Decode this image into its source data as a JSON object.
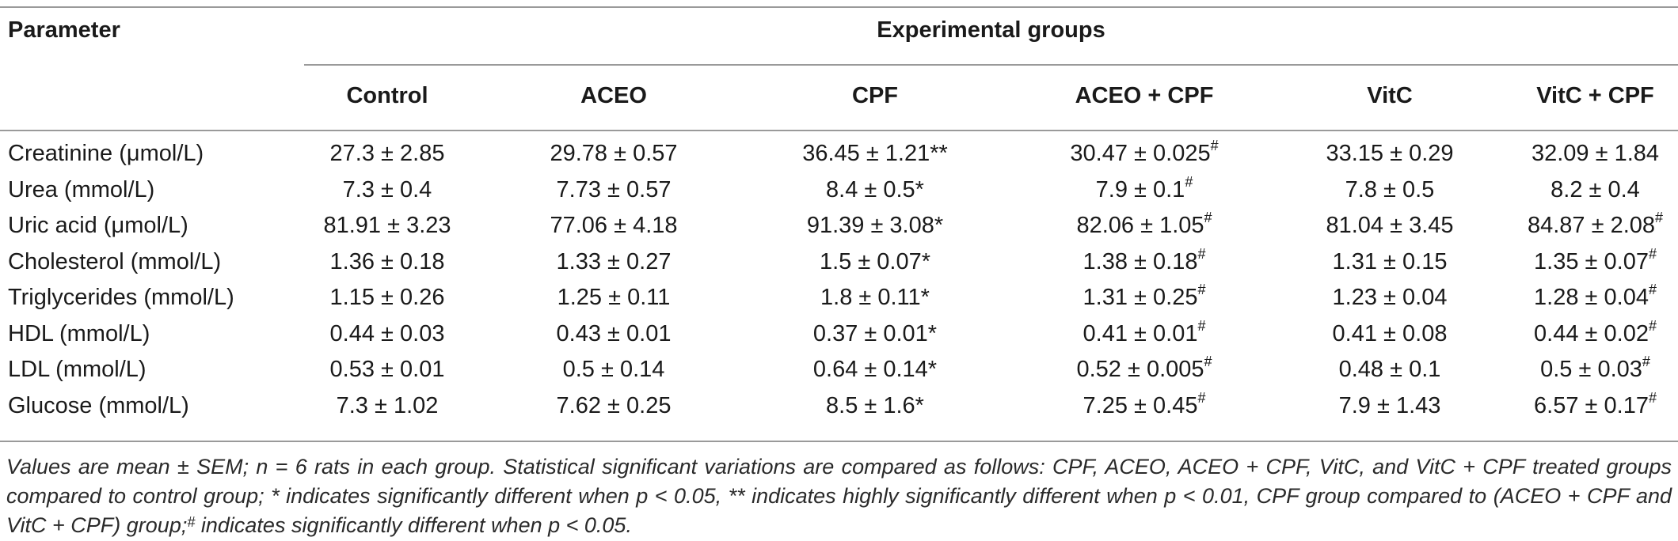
{
  "table": {
    "header_param": "Parameter",
    "header_groups": "Experimental groups",
    "columns": [
      "Control",
      "ACEO",
      "CPF",
      "ACEO + CPF",
      "VitC",
      "VitC + CPF"
    ],
    "rows": [
      {
        "label": "Creatinine (μmol/L)",
        "cells": [
          {
            "v": "27.3 ± 2.85",
            "s": ""
          },
          {
            "v": "29.78 ± 0.57",
            "s": ""
          },
          {
            "v": "36.45 ± 1.21**",
            "s": ""
          },
          {
            "v": "30.47 ± 0.025",
            "s": "#"
          },
          {
            "v": "33.15 ± 0.29",
            "s": ""
          },
          {
            "v": "32.09 ± 1.84",
            "s": ""
          }
        ]
      },
      {
        "label": "Urea (mmol/L)",
        "cells": [
          {
            "v": "7.3 ± 0.4",
            "s": ""
          },
          {
            "v": "7.73 ± 0.57",
            "s": ""
          },
          {
            "v": "8.4 ± 0.5*",
            "s": ""
          },
          {
            "v": "7.9 ± 0.1",
            "s": "#"
          },
          {
            "v": "7.8 ± 0.5",
            "s": ""
          },
          {
            "v": "8.2 ± 0.4",
            "s": ""
          }
        ]
      },
      {
        "label": "Uric acid (μmol/L)",
        "cells": [
          {
            "v": "81.91 ± 3.23",
            "s": ""
          },
          {
            "v": "77.06 ± 4.18",
            "s": ""
          },
          {
            "v": "91.39 ± 3.08*",
            "s": ""
          },
          {
            "v": "82.06 ± 1.05",
            "s": "#"
          },
          {
            "v": "81.04 ± 3.45",
            "s": ""
          },
          {
            "v": "84.87 ± 2.08",
            "s": "#"
          }
        ]
      },
      {
        "label": "Cholesterol (mmol/L)",
        "cells": [
          {
            "v": "1.36 ± 0.18",
            "s": ""
          },
          {
            "v": "1.33 ± 0.27",
            "s": ""
          },
          {
            "v": "1.5 ± 0.07*",
            "s": ""
          },
          {
            "v": "1.38 ± 0.18",
            "s": "#"
          },
          {
            "v": "1.31 ± 0.15",
            "s": ""
          },
          {
            "v": "1.35 ± 0.07",
            "s": "#"
          }
        ]
      },
      {
        "label": "Triglycerides (mmol/L)",
        "cells": [
          {
            "v": "1.15 ± 0.26",
            "s": ""
          },
          {
            "v": "1.25 ± 0.11",
            "s": ""
          },
          {
            "v": "1.8 ± 0.11*",
            "s": ""
          },
          {
            "v": "1.31 ± 0.25",
            "s": "#"
          },
          {
            "v": "1.23 ± 0.04",
            "s": ""
          },
          {
            "v": "1.28 ± 0.04",
            "s": "#"
          }
        ]
      },
      {
        "label": "HDL (mmol/L)",
        "cells": [
          {
            "v": "0.44 ± 0.03",
            "s": ""
          },
          {
            "v": "0.43 ± 0.01",
            "s": ""
          },
          {
            "v": "0.37 ± 0.01*",
            "s": ""
          },
          {
            "v": "0.41 ± 0.01",
            "s": "#"
          },
          {
            "v": "0.41 ± 0.08",
            "s": ""
          },
          {
            "v": "0.44 ± 0.02",
            "s": "#"
          }
        ]
      },
      {
        "label": "LDL (mmol/L)",
        "cells": [
          {
            "v": "0.53 ± 0.01",
            "s": ""
          },
          {
            "v": "0.5 ± 0.14",
            "s": ""
          },
          {
            "v": "0.64 ± 0.14*",
            "s": ""
          },
          {
            "v": "0.52 ± 0.005",
            "s": "#"
          },
          {
            "v": "0.48 ± 0.1",
            "s": ""
          },
          {
            "v": "0.5 ± 0.03",
            "s": "#"
          }
        ]
      },
      {
        "label": "Glucose (mmol/L)",
        "cells": [
          {
            "v": "7.3 ± 1.02",
            "s": ""
          },
          {
            "v": "7.62 ± 0.25",
            "s": ""
          },
          {
            "v": "8.5 ± 1.6*",
            "s": ""
          },
          {
            "v": "7.25 ± 0.45",
            "s": "#"
          },
          {
            "v": "7.9 ± 1.43",
            "s": ""
          },
          {
            "v": "6.57 ± 0.17",
            "s": "#"
          }
        ]
      }
    ]
  },
  "footnote": {
    "line1": "Values are mean ± SEM; n = 6 rats in each group. Statistical significant variations are compared as follows: CPF, ACEO, ACEO + CPF, VitC, and VitC + CPF treated",
    "line2": "groups compared to control group; * indicates significantly different when p < 0.05, ** indicates highly significantly different when p < 0.01, CPF group compared to",
    "line3_pre": "(ACEO + CPF and VitC + CPF) group;",
    "line3_sup": "#",
    "line3_post": "indicates significantly different when p < 0.05."
  }
}
